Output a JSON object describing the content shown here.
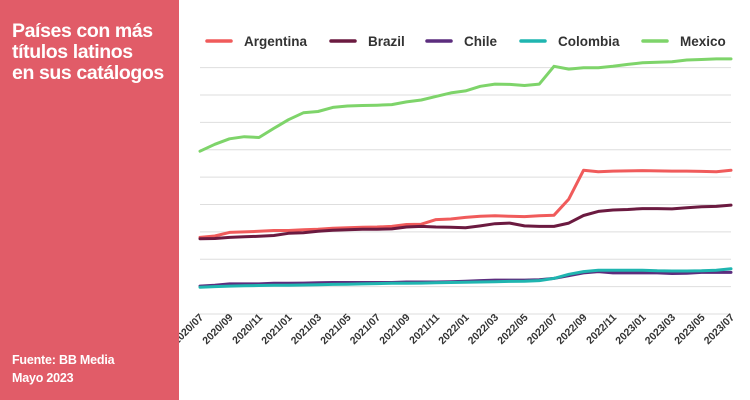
{
  "panel": {
    "title_lines": [
      "Países con más",
      "títulos latinos",
      "en sus catálogos"
    ],
    "source_lines": [
      "Fuente: BB Media",
      "Mayo 2023"
    ],
    "background_color": "#e15c68",
    "text_color": "#ffffff"
  },
  "chart_data": {
    "type": "line",
    "title": "Países con más títulos latinos en sus catálogos",
    "x": [
      "2020/07",
      "2020/08",
      "2020/09",
      "2020/10",
      "2020/11",
      "2020/12",
      "2021/01",
      "2021/02",
      "2021/03",
      "2021/04",
      "2021/05",
      "2021/06",
      "2021/07",
      "2021/08",
      "2021/09",
      "2021/10",
      "2021/11",
      "2021/12",
      "2022/01",
      "2022/02",
      "2022/03",
      "2022/04",
      "2022/05",
      "2022/06",
      "2022/07",
      "2022/08",
      "2022/09",
      "2022/10",
      "2022/11",
      "2022/12",
      "2023/01",
      "2023/02",
      "2023/03",
      "2023/04",
      "2023/05",
      "2023/06",
      "2023/07"
    ],
    "x_tick_labels": [
      "2020/07",
      "2020/09",
      "2020/11",
      "2021/01",
      "2021/03",
      "2021/05",
      "2021/07",
      "2021/09",
      "2021/11",
      "2022/01",
      "2022/03",
      "2022/05",
      "2022/07",
      "2022/09",
      "2022/11",
      "2023/01",
      "2023/03",
      "2023/05",
      "2023/07"
    ],
    "y_ticks": [
      0,
      1,
      2,
      3,
      4,
      5,
      6,
      7,
      8,
      9
    ],
    "y_tick_labels_shown": false,
    "ylim": [
      0,
      9.5
    ],
    "grid": "horizontal",
    "legend_position": "top",
    "series": [
      {
        "name": "Argentina",
        "color": "#f05b5b",
        "values": [
          2.8,
          2.85,
          2.98,
          3.0,
          3.02,
          3.05,
          3.05,
          3.08,
          3.1,
          3.13,
          3.15,
          3.17,
          3.18,
          3.2,
          3.27,
          3.28,
          3.45,
          3.47,
          3.53,
          3.57,
          3.59,
          3.57,
          3.56,
          3.59,
          3.61,
          4.2,
          5.25,
          5.2,
          5.22,
          5.23,
          5.24,
          5.23,
          5.22,
          5.22,
          5.21,
          5.2,
          5.25
        ]
      },
      {
        "name": "Brazil",
        "color": "#6b1a40",
        "values": [
          2.75,
          2.76,
          2.8,
          2.82,
          2.84,
          2.87,
          2.95,
          2.97,
          3.02,
          3.06,
          3.08,
          3.1,
          3.1,
          3.11,
          3.18,
          3.2,
          3.18,
          3.17,
          3.15,
          3.22,
          3.3,
          3.32,
          3.22,
          3.2,
          3.2,
          3.32,
          3.6,
          3.75,
          3.8,
          3.82,
          3.85,
          3.85,
          3.84,
          3.88,
          3.92,
          3.93,
          3.98
        ]
      },
      {
        "name": "Chile",
        "color": "#5c2d7e",
        "values": [
          1.02,
          1.05,
          1.1,
          1.1,
          1.1,
          1.12,
          1.12,
          1.13,
          1.14,
          1.15,
          1.15,
          1.15,
          1.15,
          1.15,
          1.17,
          1.17,
          1.17,
          1.18,
          1.2,
          1.22,
          1.24,
          1.24,
          1.24,
          1.25,
          1.3,
          1.4,
          1.5,
          1.55,
          1.5,
          1.5,
          1.5,
          1.5,
          1.48,
          1.49,
          1.52,
          1.52,
          1.52
        ]
      },
      {
        "name": "Colombia",
        "color": "#1fb5b0",
        "values": [
          0.98,
          1.0,
          1.02,
          1.03,
          1.04,
          1.05,
          1.05,
          1.06,
          1.07,
          1.08,
          1.09,
          1.1,
          1.11,
          1.12,
          1.12,
          1.13,
          1.14,
          1.15,
          1.16,
          1.17,
          1.18,
          1.19,
          1.2,
          1.22,
          1.3,
          1.45,
          1.55,
          1.6,
          1.6,
          1.6,
          1.6,
          1.58,
          1.57,
          1.57,
          1.58,
          1.6,
          1.65
        ]
      },
      {
        "name": "Mexico",
        "color": "#7ed46a",
        "values": [
          5.95,
          6.2,
          6.4,
          6.48,
          6.45,
          6.78,
          7.1,
          7.35,
          7.4,
          7.55,
          7.6,
          7.62,
          7.63,
          7.65,
          7.75,
          7.82,
          7.95,
          8.08,
          8.15,
          8.32,
          8.4,
          8.39,
          8.35,
          8.4,
          9.05,
          8.95,
          9.0,
          9.0,
          9.05,
          9.12,
          9.18,
          9.2,
          9.22,
          9.28,
          9.3,
          9.32,
          9.32
        ]
      }
    ]
  }
}
